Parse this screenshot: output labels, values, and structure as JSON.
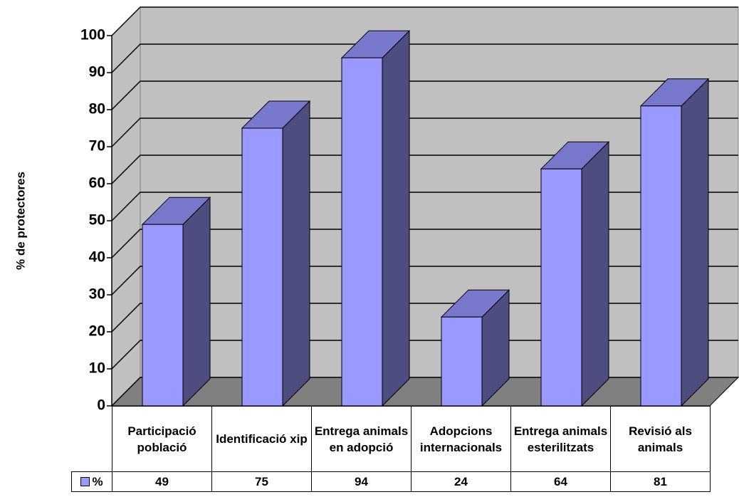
{
  "chart_data": {
    "type": "bar3d",
    "y_label": "% de protectores",
    "categories": [
      "Participació població",
      "Identificació xip",
      "Entrega animals en adopció",
      "Adopcions internacionals",
      "Entrega animals esterilitzats",
      "Revisió als animals"
    ],
    "series": [
      {
        "name": "%",
        "color": "#9999ff",
        "values": [
          49,
          75,
          94,
          24,
          64,
          81
        ]
      }
    ],
    "ylim": [
      0,
      100
    ],
    "yticks": [
      0,
      10,
      20,
      30,
      40,
      50,
      60,
      70,
      80,
      90,
      100
    ],
    "grid": true
  }
}
